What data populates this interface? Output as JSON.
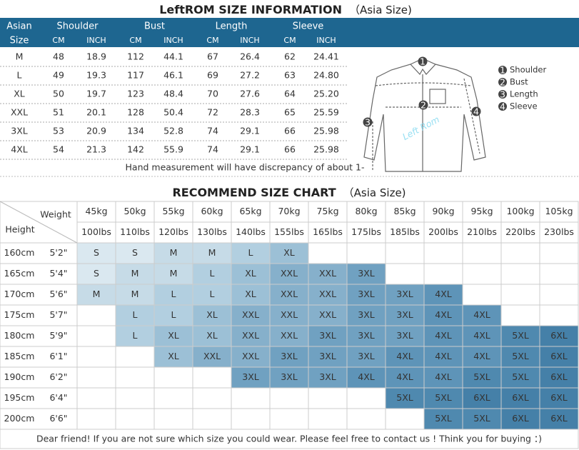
{
  "size_info": {
    "title": "LeftROM SIZE INFORMATION",
    "title_note": "（Asia Size)",
    "size_header": [
      "Asian",
      "Size"
    ],
    "groups": [
      "Shoulder",
      "Bust",
      "Length",
      "Sleeve"
    ],
    "units": [
      "CM",
      "INCH"
    ],
    "rows": [
      [
        "M",
        "48",
        "18.9",
        "112",
        "44.1",
        "67",
        "26.4",
        "62",
        "24.41"
      ],
      [
        "L",
        "49",
        "19.3",
        "117",
        "46.1",
        "69",
        "27.2",
        "63",
        "24.80"
      ],
      [
        "XL",
        "50",
        "19.7",
        "123",
        "48.4",
        "70",
        "27.6",
        "64",
        "25.20"
      ],
      [
        "XXL",
        "51",
        "20.1",
        "128",
        "50.4",
        "72",
        "28.3",
        "65",
        "25.59"
      ],
      [
        "3XL",
        "53",
        "20.9",
        "134",
        "52.8",
        "74",
        "29.1",
        "66",
        "25.98"
      ],
      [
        "4XL",
        "54",
        "21.3",
        "142",
        "55.9",
        "74",
        "29.1",
        "66",
        "25.98"
      ]
    ],
    "note": "Hand measurement will have discrepancy of about 1-",
    "legend": [
      {
        "num": "1",
        "label": "Shoulder"
      },
      {
        "num": "2",
        "label": "Bust"
      },
      {
        "num": "3",
        "label": "Length"
      },
      {
        "num": "4",
        "label": "Sleeve"
      }
    ],
    "watermark": "Left Rom"
  },
  "recommend": {
    "title": "RECOMMEND SIZE CHART",
    "title_note": "（Asia Size)",
    "weight_label": "Weight",
    "height_label": "Height",
    "weights_kg": [
      "45kg",
      "50kg",
      "55kg",
      "60kg",
      "65kg",
      "70kg",
      "75kg",
      "80kg",
      "85kg",
      "90kg",
      "95kg",
      "100kg",
      "105kg"
    ],
    "weights_lbs": [
      "100lbs",
      "110lbs",
      "120lbs",
      "130lbs",
      "140lbs",
      "155lbs",
      "165lbs",
      "175lbs",
      "185lbs",
      "200lbs",
      "210lbs",
      "220lbs",
      "230lbs"
    ],
    "rows": [
      {
        "cm": "160cm",
        "ft": "5'2\"",
        "sizes": [
          "S",
          "S",
          "M",
          "M",
          "L",
          "XL",
          null,
          null,
          null,
          null,
          null,
          null,
          null
        ]
      },
      {
        "cm": "165cm",
        "ft": "5'4\"",
        "sizes": [
          "S",
          "M",
          "M",
          "L",
          "XL",
          "XXL",
          "XXL",
          "3XL",
          null,
          null,
          null,
          null,
          null
        ]
      },
      {
        "cm": "170cm",
        "ft": "5'6\"",
        "sizes": [
          "M",
          "M",
          "L",
          "L",
          "XL",
          "XXL",
          "XXL",
          "3XL",
          "3XL",
          "4XL",
          null,
          null,
          null
        ]
      },
      {
        "cm": "175cm",
        "ft": "5'7\"",
        "sizes": [
          null,
          "L",
          "L",
          "XL",
          "XXL",
          "XXL",
          "XXL",
          "3XL",
          "3XL",
          "4XL",
          "4XL",
          null,
          null
        ]
      },
      {
        "cm": "180cm",
        "ft": "5'9\"",
        "sizes": [
          null,
          "L",
          "XL",
          "XL",
          "XXL",
          "XXL",
          "3XL",
          "3XL",
          "3XL",
          "4XL",
          "4XL",
          "5XL",
          "6XL"
        ]
      },
      {
        "cm": "185cm",
        "ft": "6'1\"",
        "sizes": [
          null,
          null,
          "XL",
          "XXL",
          "XXL",
          "3XL",
          "3XL",
          "3XL",
          "4XL",
          "4XL",
          "4XL",
          "5XL",
          "6XL"
        ]
      },
      {
        "cm": "190cm",
        "ft": "6'2\"",
        "sizes": [
          null,
          null,
          null,
          null,
          "3XL",
          "3XL",
          "3XL",
          "4XL",
          "4XL",
          "4XL",
          "5XL",
          "5XL",
          "6XL"
        ]
      },
      {
        "cm": "195cm",
        "ft": "6'4\"",
        "sizes": [
          null,
          null,
          null,
          null,
          null,
          null,
          null,
          null,
          "5XL",
          "5XL",
          "6XL",
          "6XL",
          "6XL"
        ]
      },
      {
        "cm": "200cm",
        "ft": "6'6\"",
        "sizes": [
          null,
          null,
          null,
          null,
          null,
          null,
          null,
          null,
          null,
          "5XL",
          "5XL",
          "6XL",
          "6XL"
        ]
      }
    ],
    "size_colors": {
      "S": "#dae8f0",
      "M": "#c6dbe7",
      "L": "#b2cfe0",
      "XL": "#9cc0d6",
      "XXL": "#86b0cb",
      "3XL": "#70a1c1",
      "4XL": "#5e94b8",
      "5XL": "#4f89af",
      "6XL": "#4580a8"
    }
  },
  "footer": "Dear friend! If you are not sure which size you could wear. Please feel free to contact us ! Think you for buying ：)"
}
